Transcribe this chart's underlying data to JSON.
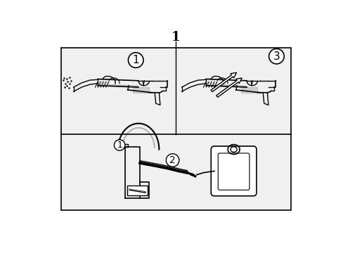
{
  "title": "1",
  "bg_color": "#ffffff",
  "line_color": "#000000",
  "gray_color": "#999999",
  "light_bg": "#f0f0f0",
  "fig_width": 4.89,
  "fig_height": 3.6,
  "dpi": 100
}
